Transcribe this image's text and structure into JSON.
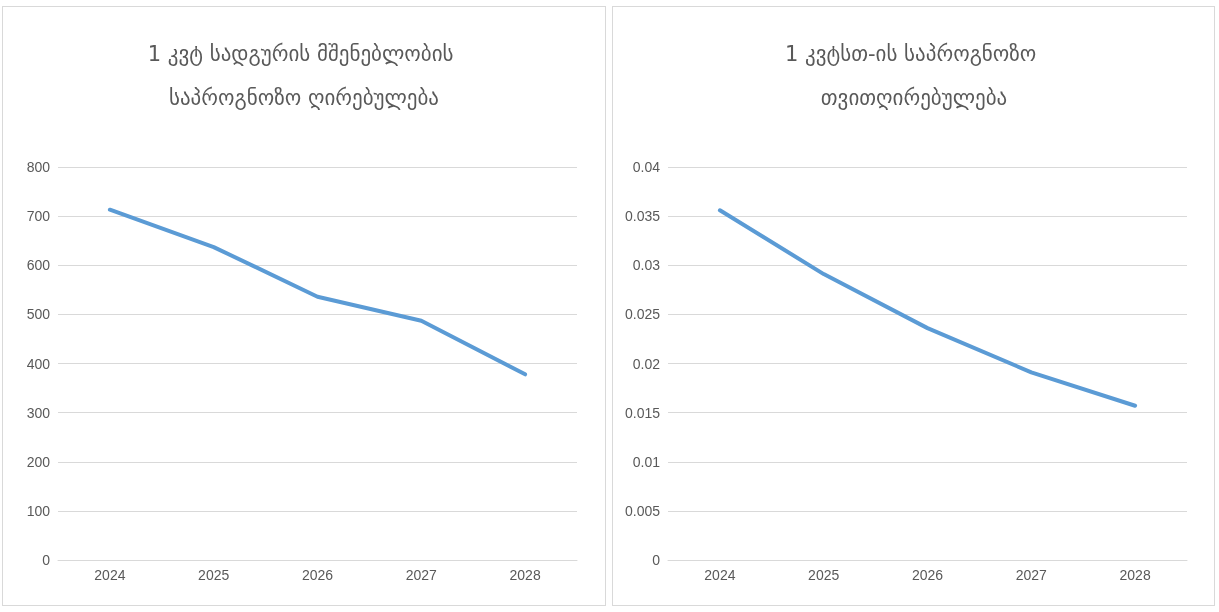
{
  "chart_data": [
    {
      "type": "line",
      "title": "1 კვტ სადგურის მშენებლობის საპროგნოზო ღირებულება",
      "categories": [
        "2024",
        "2025",
        "2026",
        "2027",
        "2028"
      ],
      "series": [
        {
          "color": "#5b9bd5",
          "values": [
            713,
            637,
            536,
            487,
            378
          ]
        }
      ],
      "ylim": [
        0,
        800
      ],
      "yticks": [
        0,
        100,
        200,
        300,
        400,
        500,
        600,
        700,
        800
      ],
      "grid": "y",
      "marker": "none",
      "line_style": "solid"
    },
    {
      "type": "line",
      "title": "1 კვტსთ-ის საპროგნოზო თვითღირებულება",
      "categories": [
        "2024",
        "2025",
        "2026",
        "2027",
        "2028"
      ],
      "series": [
        {
          "color": "#5b9bd5",
          "values": [
            0.0356,
            0.0291,
            0.0236,
            0.0191,
            0.0157
          ]
        }
      ],
      "ylim": [
        0,
        0.04
      ],
      "yticks": [
        0,
        0.005,
        0.01,
        0.015,
        0.02,
        0.025,
        0.03,
        0.035,
        0.04
      ],
      "grid": "y",
      "marker": "none",
      "line_style": "solid"
    }
  ]
}
